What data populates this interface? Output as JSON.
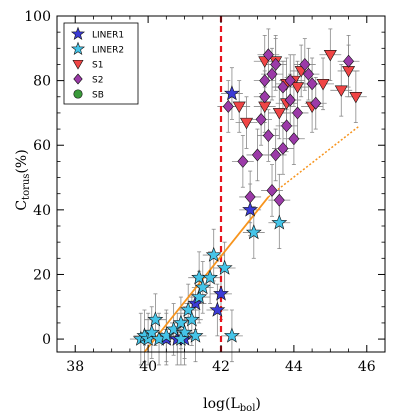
{
  "chart_data": {
    "type": "scatter",
    "title": "",
    "xlabel": "log(L",
    "xlabel_sub": "bol",
    "xlabel_close": ")",
    "ylabel": "C",
    "ylabel_sub": "torus",
    "ylabel_close": "(%)",
    "xlim": [
      37.5,
      46.5
    ],
    "ylim": [
      -4,
      100
    ],
    "xticks": [
      38,
      40,
      42,
      44,
      46
    ],
    "yticks": [
      0,
      20,
      40,
      60,
      80,
      100
    ],
    "grid": false,
    "legend_position": "top-left",
    "vertical_line": {
      "x": 42,
      "color": "#e8141e",
      "style": "dashed"
    },
    "fit_line": {
      "color": "#f7941d",
      "solid_x": [
        39.9,
        43.3
      ],
      "solid_y": [
        -4,
        44
      ],
      "dotted_x": [
        43.3,
        45.8
      ],
      "dotted_y": [
        44,
        66
      ]
    },
    "series": [
      {
        "name": "LINER1",
        "marker": "star",
        "color": "#3b3bd6",
        "points": [
          [
            42.3,
            76
          ],
          [
            42.0,
            14
          ],
          [
            42.8,
            40
          ],
          [
            40.5,
            0
          ],
          [
            40.8,
            0
          ],
          [
            41.0,
            0
          ],
          [
            41.3,
            11
          ],
          [
            41.9,
            9
          ]
        ]
      },
      {
        "name": "LINER2",
        "marker": "star",
        "color": "#45c4e8",
        "points": [
          [
            39.8,
            0
          ],
          [
            39.9,
            1
          ],
          [
            40.0,
            0
          ],
          [
            40.1,
            2
          ],
          [
            40.2,
            6
          ],
          [
            40.3,
            0
          ],
          [
            40.5,
            1
          ],
          [
            40.7,
            3
          ],
          [
            40.9,
            5
          ],
          [
            41.0,
            2
          ],
          [
            41.1,
            9
          ],
          [
            41.3,
            1
          ],
          [
            41.4,
            13
          ],
          [
            41.4,
            19
          ],
          [
            41.5,
            16
          ],
          [
            41.7,
            19
          ],
          [
            41.8,
            26
          ],
          [
            42.1,
            22
          ],
          [
            42.3,
            1
          ],
          [
            42.9,
            33
          ],
          [
            43.6,
            36
          ],
          [
            40.9,
            0
          ],
          [
            41.2,
            6
          ]
        ]
      },
      {
        "name": "S1",
        "marker": "triangle-down",
        "color": "#f04545",
        "points": [
          [
            42.5,
            72
          ],
          [
            42.7,
            67
          ],
          [
            43.2,
            86
          ],
          [
            43.5,
            86
          ],
          [
            43.8,
            79
          ],
          [
            43.8,
            73
          ],
          [
            44.0,
            80
          ],
          [
            44.1,
            78
          ],
          [
            44.2,
            83
          ],
          [
            44.5,
            72
          ],
          [
            44.8,
            79
          ],
          [
            45.0,
            88
          ],
          [
            45.3,
            77
          ],
          [
            45.5,
            83
          ],
          [
            45.7,
            75
          ],
          [
            43.2,
            72
          ],
          [
            43.6,
            70
          ]
        ]
      },
      {
        "name": "S2",
        "marker": "diamond",
        "color": "#9b3aa8",
        "points": [
          [
            42.2,
            72
          ],
          [
            42.6,
            55
          ],
          [
            42.8,
            44
          ],
          [
            43.0,
            57
          ],
          [
            43.1,
            68
          ],
          [
            43.2,
            75
          ],
          [
            43.3,
            88
          ],
          [
            43.3,
            63
          ],
          [
            43.4,
            82
          ],
          [
            43.4,
            46
          ],
          [
            43.5,
            57
          ],
          [
            43.5,
            85
          ],
          [
            43.6,
            43
          ],
          [
            43.7,
            59
          ],
          [
            43.7,
            78
          ],
          [
            43.8,
            66
          ],
          [
            43.9,
            74
          ],
          [
            44.0,
            62
          ],
          [
            44.1,
            70
          ],
          [
            44.3,
            85
          ],
          [
            44.4,
            82
          ],
          [
            44.5,
            79
          ],
          [
            44.6,
            73
          ],
          [
            45.5,
            86
          ],
          [
            43.9,
            80
          ],
          [
            43.2,
            80
          ]
        ]
      },
      {
        "name": "SB",
        "marker": "circle",
        "color": "#3a9a3a",
        "points": []
      }
    ]
  }
}
